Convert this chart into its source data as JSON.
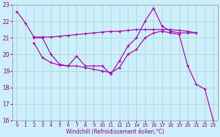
{
  "xlabel": "Windchill (Refroidissement éolien,°C)",
  "bg_color": "#cceeff",
  "grid_color": "#aaddcc",
  "line_color": "#aa00aa",
  "xlim": [
    -0.5,
    23.5
  ],
  "ylim": [
    16,
    23
  ],
  "yticks": [
    16,
    17,
    18,
    19,
    20,
    21,
    22,
    23
  ],
  "xticks": [
    0,
    1,
    2,
    3,
    4,
    5,
    6,
    7,
    8,
    9,
    10,
    11,
    12,
    13,
    14,
    15,
    16,
    17,
    18,
    19,
    20,
    21,
    22,
    23
  ],
  "series": [
    {
      "x": [
        0,
        1,
        2,
        3,
        4,
        5,
        6,
        7,
        8,
        9,
        10,
        11,
        12,
        13,
        14,
        15,
        16,
        17,
        18,
        19,
        20,
        21
      ],
      "y": [
        22.6,
        21.9,
        21.05,
        21.05,
        21.05,
        21.1,
        21.15,
        21.2,
        21.25,
        21.3,
        21.35,
        21.4,
        21.4,
        21.45,
        21.5,
        21.5,
        21.5,
        21.5,
        21.5,
        21.45,
        21.4,
        21.3
      ]
    },
    {
      "x": [
        2,
        3,
        4,
        5,
        6,
        7,
        8,
        9,
        10,
        11,
        12,
        13,
        14,
        15,
        16,
        17,
        18,
        19,
        20,
        21
      ],
      "y": [
        21.0,
        21.0,
        20.0,
        19.4,
        19.3,
        19.9,
        19.3,
        19.3,
        19.3,
        18.8,
        19.6,
        20.5,
        21.0,
        22.0,
        22.8,
        21.7,
        21.4,
        21.3,
        21.3,
        21.3
      ]
    },
    {
      "x": [
        2,
        3,
        4,
        5,
        6,
        7,
        8,
        9,
        10,
        11,
        12,
        13,
        14,
        15,
        16,
        17,
        18,
        19,
        20,
        21,
        22,
        23
      ],
      "y": [
        20.7,
        19.8,
        19.5,
        19.35,
        19.3,
        19.3,
        19.2,
        19.1,
        19.0,
        18.9,
        19.2,
        20.0,
        20.3,
        21.0,
        21.3,
        21.4,
        21.3,
        21.2,
        19.3,
        18.2,
        17.9,
        16.0
      ]
    }
  ]
}
